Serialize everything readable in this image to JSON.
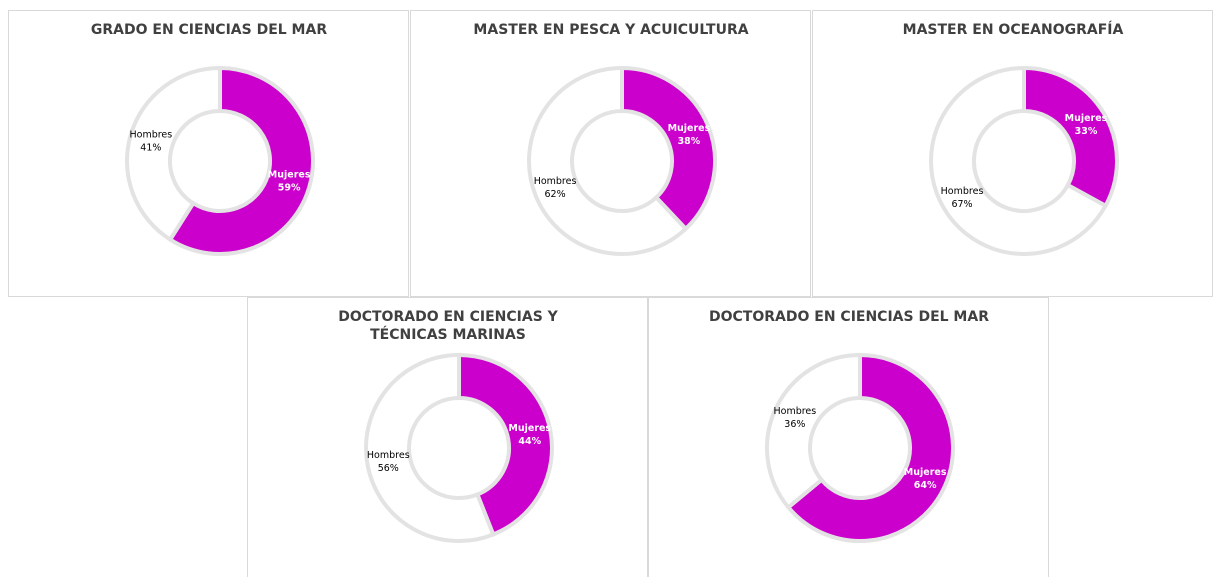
{
  "chart_data": [
    {
      "type": "donut",
      "title": "GRADO EN CIENCIAS DEL MAR",
      "categories": [
        "Mujeres",
        "Hombres"
      ],
      "values": [
        59,
        41
      ],
      "value_labels": [
        "59%",
        "41%"
      ],
      "colors": [
        "#cc00cc",
        "#ffffff"
      ]
    },
    {
      "type": "donut",
      "title": "MASTER EN PESCA Y ACUICULTURA",
      "categories": [
        "Mujeres",
        "Hombres"
      ],
      "values": [
        38,
        62
      ],
      "value_labels": [
        "38%",
        "62%"
      ],
      "colors": [
        "#cc00cc",
        "#ffffff"
      ]
    },
    {
      "type": "donut",
      "title": "MASTER EN OCEANOGRAFÍA",
      "categories": [
        "Mujeres",
        "Hombres"
      ],
      "values": [
        33,
        67
      ],
      "value_labels": [
        "33%",
        "67%"
      ],
      "colors": [
        "#cc00cc",
        "#ffffff"
      ]
    },
    {
      "type": "donut",
      "title": "DOCTORADO EN CIENCIAS Y TÉCNICAS MARINAS",
      "categories": [
        "Mujeres",
        "Hombres"
      ],
      "values": [
        44,
        56
      ],
      "value_labels": [
        "44%",
        "56%"
      ],
      "colors": [
        "#cc00cc",
        "#ffffff"
      ]
    },
    {
      "type": "donut",
      "title": "DOCTORADO EN CIENCIAS DEL MAR",
      "categories": [
        "Mujeres",
        "Hombres"
      ],
      "values": [
        64,
        36
      ],
      "value_labels": [
        "64%",
        "36%"
      ],
      "colors": [
        "#cc00cc",
        "#ffffff"
      ]
    }
  ]
}
